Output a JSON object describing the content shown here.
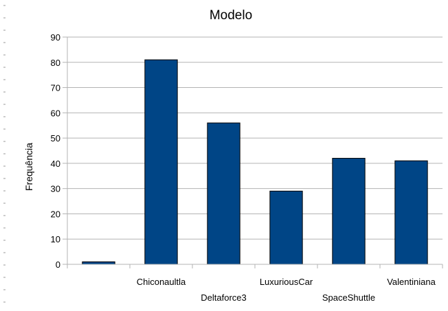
{
  "chart_data": {
    "type": "bar",
    "title": "Modelo",
    "xlabel": "",
    "ylabel": "Frequência",
    "categories": [
      "",
      "Chiconaultla",
      "Deltaforce3",
      "LuxuriousCar",
      "SpaceShuttle",
      "Valentiniana"
    ],
    "values": [
      1,
      81,
      56,
      29,
      42,
      41
    ],
    "ylim": [
      0,
      90
    ],
    "yticks": [
      "0",
      "10",
      "20",
      "30",
      "40",
      "50",
      "60",
      "70",
      "80",
      "90"
    ],
    "grid": true,
    "legend": "none",
    "bar_color": "#004586",
    "grid_color": "#b3b3b3",
    "axis_color": "#b3b3b3"
  }
}
